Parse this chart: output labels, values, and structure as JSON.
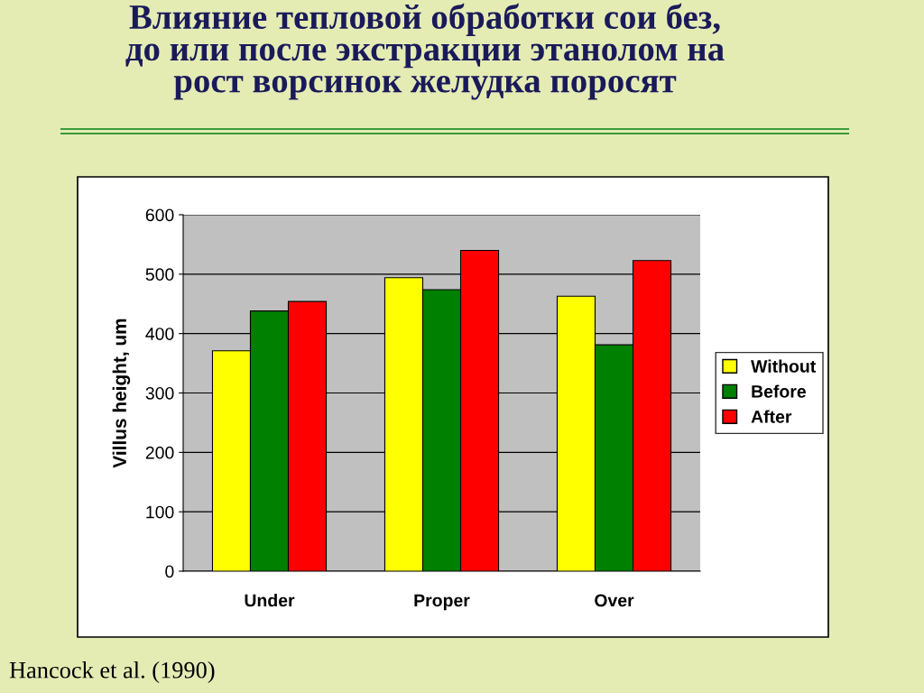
{
  "chart_data": {
    "type": "bar",
    "title": "Влияние тепловой обработки сои без,\nдо или после экстракции этанолом на\nрост ворсинок желудка поросят",
    "ylabel": "Villus height, um",
    "categories": [
      "Under",
      "Proper",
      "Over"
    ],
    "series": [
      {
        "name": "Without",
        "color": "#ffff00",
        "values": [
          371,
          494,
          463
        ]
      },
      {
        "name": "Before",
        "color": "#008000",
        "values": [
          438,
          474,
          381
        ]
      },
      {
        "name": "After",
        "color": "#ff0000",
        "values": [
          454,
          540,
          523
        ]
      }
    ],
    "ylim": [
      0,
      600
    ],
    "yticks": [
      0,
      100,
      200,
      300,
      400,
      500,
      600
    ],
    "grid": "y",
    "legend": "right",
    "annotations": [
      "Hancock et al. (1990)"
    ]
  }
}
